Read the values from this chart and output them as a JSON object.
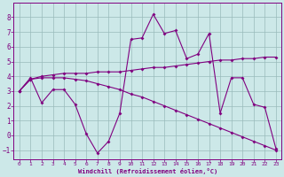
{
  "x_full": [
    0,
    1,
    2,
    3,
    4,
    5,
    6,
    7,
    8,
    9,
    10,
    11,
    12,
    13,
    14,
    15,
    16,
    17,
    18,
    19,
    20,
    21,
    22,
    23
  ],
  "curve_hourly": [
    3.0,
    3.9,
    2.2,
    3.1,
    3.1,
    2.1,
    0.1,
    -1.2,
    -0.4,
    1.5,
    6.5,
    6.6,
    8.2,
    6.9,
    7.1,
    5.2,
    5.5,
    6.9,
    1.5,
    3.9,
    3.9,
    2.1,
    1.9,
    -0.9
  ],
  "x_trend1": [
    0,
    1,
    2,
    3,
    4,
    5,
    6,
    7,
    8,
    9,
    10,
    11,
    12,
    13,
    14,
    15,
    16,
    17,
    18,
    19,
    20,
    21,
    22,
    23
  ],
  "curve_trend1": [
    3.0,
    3.8,
    4.0,
    4.1,
    4.2,
    4.2,
    4.2,
    4.3,
    4.3,
    4.3,
    4.4,
    4.5,
    4.6,
    4.6,
    4.7,
    4.8,
    4.9,
    5.0,
    5.1,
    5.1,
    5.2,
    5.2,
    5.3,
    5.3
  ],
  "x_trend2": [
    0,
    1,
    2,
    3,
    4,
    5,
    6,
    7,
    8,
    9,
    10,
    11,
    12,
    13,
    14,
    15,
    16,
    17,
    18,
    19,
    20,
    21,
    22,
    23
  ],
  "curve_trend2": [
    3.0,
    3.8,
    3.9,
    3.9,
    3.9,
    3.8,
    3.7,
    3.5,
    3.3,
    3.1,
    2.8,
    2.6,
    2.3,
    2.0,
    1.7,
    1.4,
    1.1,
    0.8,
    0.5,
    0.2,
    -0.1,
    -0.4,
    -0.7,
    -1.0
  ],
  "color": "#800080",
  "bg_color": "#cce8e8",
  "grid_color": "#99bbbb",
  "xlabel": "Windchill (Refroidissement éolien,°C)",
  "xlim": [
    -0.5,
    23.5
  ],
  "ylim": [
    -1.6,
    9.0
  ],
  "xticks": [
    0,
    1,
    2,
    3,
    4,
    5,
    6,
    7,
    8,
    9,
    10,
    11,
    12,
    13,
    14,
    15,
    16,
    17,
    18,
    19,
    20,
    21,
    22,
    23
  ],
  "yticks": [
    -1,
    0,
    1,
    2,
    3,
    4,
    5,
    6,
    7,
    8
  ]
}
